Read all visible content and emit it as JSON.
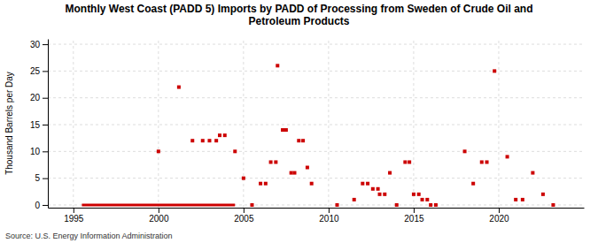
{
  "chart_data": {
    "type": "scatter",
    "title": "Monthly West Coast (PADD 5) Imports by PADD of Processing from Sweden of Crude Oil and\nPetroleum Products",
    "ylabel": "Thousand Barrels per Day",
    "source": "Source: U.S. Energy Information Administration",
    "xlim": [
      1993.5,
      2025
    ],
    "ylim": [
      -0.5,
      31
    ],
    "xticks": [
      1995,
      2000,
      2005,
      2010,
      2015,
      2020
    ],
    "yticks": [
      0,
      5,
      10,
      15,
      20,
      25,
      30
    ],
    "grid": true,
    "series": [
      {
        "type": "scatter",
        "color": "#cc0000",
        "marker": "square",
        "x": [
          2000.0,
          2001.2,
          2002.0,
          2002.6,
          2003.0,
          2003.4,
          2003.6,
          2003.9,
          2004.5,
          2005.0,
          2005.5,
          2006.0,
          2006.3,
          2006.6,
          2006.9,
          2007.0,
          2007.3,
          2007.5,
          2007.8,
          2008.0,
          2008.25,
          2008.5,
          2008.75,
          2009.0,
          2010.5,
          2011.5,
          2012.0,
          2012.3,
          2012.6,
          2012.9,
          2013.0,
          2013.3,
          2013.6,
          2014.0,
          2014.5,
          2014.75,
          2015.0,
          2015.3,
          2015.5,
          2015.8,
          2016.0,
          2016.3,
          2018.0,
          2018.5,
          2019.0,
          2019.3,
          2019.75,
          2020.5,
          2021.0,
          2021.4,
          2022.0,
          2022.6,
          2023.2
        ],
        "values": [
          10,
          22,
          12,
          12,
          12,
          12,
          13,
          13,
          10,
          5,
          0,
          4,
          4,
          8,
          8,
          26,
          14,
          14,
          6,
          6,
          12,
          12,
          7,
          4,
          0,
          1,
          4,
          4,
          3,
          3,
          2,
          2,
          6,
          0,
          8,
          8,
          2,
          2,
          1,
          1,
          0,
          0,
          10,
          4,
          8,
          8,
          25,
          9,
          1,
          1,
          6,
          2,
          0
        ]
      },
      {
        "type": "line",
        "color": "#cc0000",
        "x": [
          1995.5,
          2004.5
        ],
        "values": [
          0,
          0
        ]
      }
    ]
  }
}
